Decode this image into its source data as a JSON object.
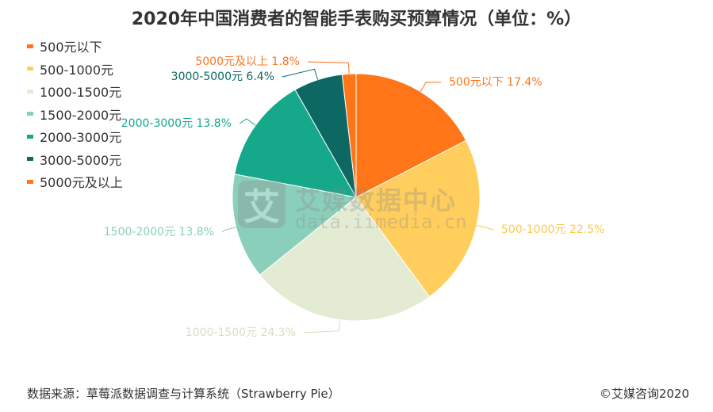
{
  "chart_data": {
    "type": "pie",
    "title": "2020年中国消费者的智能手表购买预算情况（单位：%）",
    "categories": [
      "500元以下",
      "500-1000元",
      "1000-1500元",
      "1500-2000元",
      "2000-3000元",
      "3000-5000元",
      "5000元及以上"
    ],
    "values": [
      17.4,
      22.5,
      24.3,
      13.8,
      13.8,
      6.4,
      1.8
    ],
    "data_labels": [
      "500元以下 17.4%",
      "500-1000元 22.5%",
      "1000-1500元 24.3%",
      "1500-2000元 13.8%",
      "2000-3000元 13.8%",
      "3000-5000元 6.4%",
      "5000元及以上 1.8%"
    ],
    "colors": [
      "#FF7518",
      "#FFCE5C",
      "#E3EBD3",
      "#8ACFBA",
      "#15A88A",
      "#0D6863",
      "#FF7518"
    ],
    "legend_position": "top-left"
  },
  "watermark": {
    "logo_char": "艾",
    "text_cn": "艾媒数据中心",
    "text_url": "data.iimedia.cn"
  },
  "footer": {
    "source": "数据来源：草莓派数据调查与计算系统（Strawberry Pie）",
    "copyright": "©艾媒咨询2020"
  }
}
